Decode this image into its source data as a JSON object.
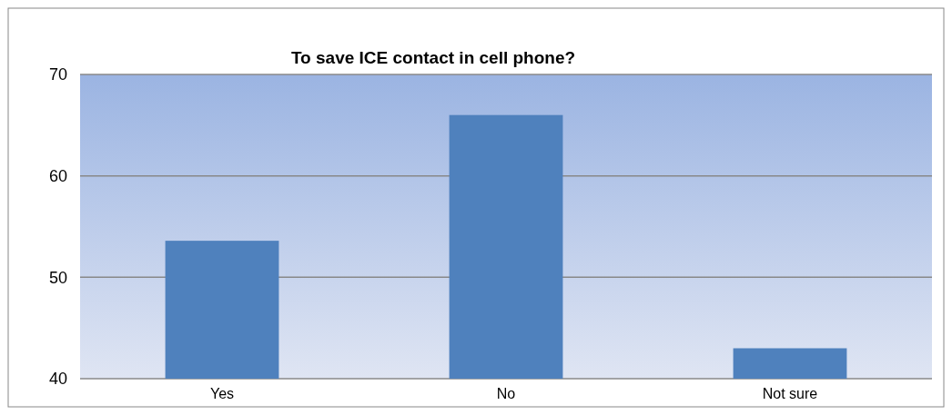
{
  "chart_data": {
    "type": "bar",
    "title": "To save ICE contact in cell phone?",
    "categories": [
      "Yes",
      "No",
      "Not sure"
    ],
    "values": [
      53.6,
      66,
      43
    ],
    "color": "#4f81bd",
    "ylim": [
      40,
      70
    ],
    "yticks": [
      40,
      50,
      60,
      70
    ],
    "grid": true
  }
}
